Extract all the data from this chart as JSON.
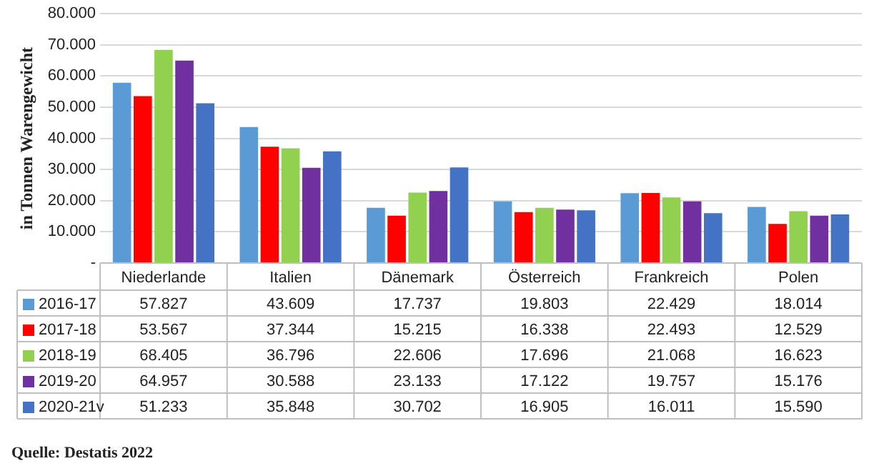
{
  "chart_data": {
    "type": "bar",
    "ylabel": "in Tonnen Warengewicht",
    "categories": [
      "Niederlande",
      "Italien",
      "Dänemark",
      "Österreich",
      "Frankreich",
      "Polen"
    ],
    "series": [
      {
        "name": "2016-17",
        "color": "#5b9bd5",
        "values": [
          57827,
          43609,
          17737,
          19803,
          22429,
          18014
        ],
        "value_labels": [
          "57.827",
          "43.609",
          "17.737",
          "19.803",
          "22.429",
          "18.014"
        ]
      },
      {
        "name": "2017-18",
        "color": "#ff0000",
        "values": [
          53567,
          37344,
          15215,
          16338,
          22493,
          12529
        ],
        "value_labels": [
          "53.567",
          "37.344",
          "15.215",
          "16.338",
          "22.493",
          "12.529"
        ]
      },
      {
        "name": "2018-19",
        "color": "#92d050",
        "values": [
          68405,
          36796,
          22606,
          17696,
          21068,
          16623
        ],
        "value_labels": [
          "68.405",
          "36.796",
          "22.606",
          "17.696",
          "21.068",
          "16.623"
        ]
      },
      {
        "name": "2019-20",
        "color": "#7030a0",
        "values": [
          64957,
          30588,
          23133,
          17122,
          19757,
          15176
        ],
        "value_labels": [
          "64.957",
          "30.588",
          "23.133",
          "17.122",
          "19.757",
          "15.176"
        ]
      },
      {
        "name": "2020-21v",
        "color": "#4472c4",
        "values": [
          51233,
          35848,
          30702,
          16905,
          16011,
          15590
        ],
        "value_labels": [
          "51.233",
          "35.848",
          "30.702",
          "16.905",
          "16.011",
          "15.590"
        ]
      }
    ],
    "ylim": [
      0,
      80000
    ],
    "yticks": [
      {
        "value": 0,
        "label": "-"
      },
      {
        "value": 10000,
        "label": "10.000"
      },
      {
        "value": 20000,
        "label": "20.000"
      },
      {
        "value": 30000,
        "label": "30.000"
      },
      {
        "value": 40000,
        "label": "40.000"
      },
      {
        "value": 50000,
        "label": "50.000"
      },
      {
        "value": 60000,
        "label": "60.000"
      },
      {
        "value": 70000,
        "label": "70.000"
      },
      {
        "value": 80000,
        "label": "80.000"
      }
    ],
    "grid": "y",
    "legend": "bottom",
    "annotations": [
      "Quelle: Destatis 2022"
    ]
  }
}
